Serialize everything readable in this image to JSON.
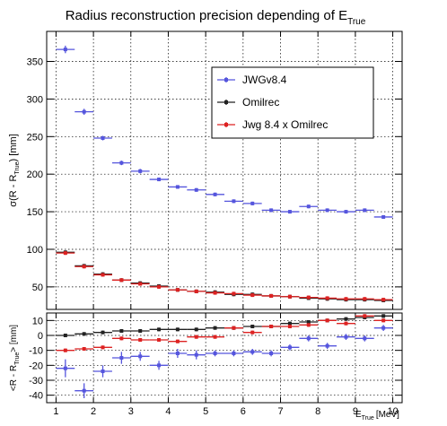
{
  "chart_data": {
    "type": "scatter",
    "title": "Radius reconstruction precision depending of E",
    "title_sub": "True",
    "xlabel_main": "E",
    "xlabel_sub": "True",
    "xlabel_unit": "[MeV]",
    "top": {
      "ylabel": "σ(R - R",
      "ylabel_sub": "True",
      "ylabel_end": ") [mm]",
      "xlim": [
        0.75,
        10.25
      ],
      "ylim": [
        20,
        390
      ],
      "yticks": [
        50,
        100,
        150,
        200,
        250,
        300,
        350
      ],
      "grid": true,
      "legend_position": "top-right",
      "series": [
        {
          "name": "JWGv8.4",
          "color": "#5555dd",
          "x": [
            1.25,
            1.75,
            2.25,
            2.75,
            3.25,
            3.75,
            4.25,
            4.75,
            5.25,
            5.75,
            6.25,
            6.75,
            7.25,
            7.75,
            8.25,
            8.75,
            9.25,
            9.75
          ],
          "y": [
            366,
            283,
            248,
            215,
            204,
            193,
            183,
            179,
            173,
            164,
            161,
            152,
            150,
            157,
            152,
            150,
            152,
            143
          ],
          "yerr": [
            5,
            4,
            3,
            3,
            3,
            2,
            2,
            2,
            2,
            2,
            2,
            2,
            2,
            2,
            2,
            2,
            2,
            2
          ]
        },
        {
          "name": "Omilrec",
          "color": "#222222",
          "x": [
            1.25,
            1.75,
            2.25,
            2.75,
            3.25,
            3.75,
            4.25,
            4.75,
            5.25,
            5.75,
            6.25,
            6.75,
            7.25,
            7.75,
            8.25,
            8.75,
            9.25,
            9.75
          ],
          "y": [
            96,
            78,
            67,
            59,
            55,
            51,
            46,
            44,
            43,
            40,
            40,
            38,
            37,
            35,
            34,
            33,
            33,
            32
          ],
          "yerr": [
            1.5,
            1,
            1,
            1,
            1,
            1,
            1,
            1,
            1,
            1,
            1,
            1,
            1,
            1,
            1,
            1,
            1,
            1
          ]
        },
        {
          "name": "Jwg 8.4 x Omilrec",
          "color": "#dd2222",
          "x": [
            1.25,
            1.75,
            2.25,
            2.75,
            3.25,
            3.75,
            4.25,
            4.75,
            5.25,
            5.75,
            6.25,
            6.75,
            7.25,
            7.75,
            8.25,
            8.75,
            9.25,
            9.75
          ],
          "y": [
            95,
            77,
            66,
            59,
            54,
            50,
            46,
            44,
            42,
            41,
            39,
            38,
            37,
            36,
            35,
            34,
            34,
            33
          ],
          "yerr": [
            1.5,
            1,
            1,
            1,
            1,
            1,
            1,
            1,
            1,
            1,
            1,
            1,
            1,
            1,
            1,
            1,
            1,
            1
          ]
        }
      ]
    },
    "bottom": {
      "ylabel": "<R - R",
      "ylabel_sub": "True",
      "ylabel_end": "> [mm]",
      "xlim": [
        0.75,
        10.25
      ],
      "ylim": [
        -45,
        15
      ],
      "yticks": [
        -40,
        -30,
        -20,
        -10,
        0,
        10
      ],
      "xticks": [
        1,
        2,
        3,
        4,
        5,
        6,
        7,
        8,
        9,
        10
      ],
      "grid": true,
      "series": [
        {
          "name": "JWGv8.4",
          "color": "#5555dd",
          "x": [
            1.25,
            1.75,
            2.25,
            2.75,
            3.25,
            3.75,
            4.25,
            4.75,
            5.25,
            5.75,
            6.25,
            6.75,
            7.25,
            7.75,
            8.25,
            8.75,
            9.25,
            9.75
          ],
          "y": [
            -22,
            -37,
            -24,
            -15,
            -14,
            -20,
            -12,
            -13,
            -12,
            -12,
            -11,
            -12,
            -8,
            -2,
            -7,
            -1,
            -2,
            5
          ],
          "yerr": [
            6,
            5,
            4,
            4,
            3,
            3,
            3,
            3,
            2,
            2,
            2,
            2,
            2,
            2,
            2,
            2,
            2,
            2
          ]
        },
        {
          "name": "Omilrec",
          "color": "#222222",
          "x": [
            1.25,
            1.75,
            2.25,
            2.75,
            3.25,
            3.75,
            4.25,
            4.75,
            5.25,
            5.75,
            6.25,
            6.75,
            7.25,
            7.75,
            8.25,
            8.75,
            9.25,
            9.75
          ],
          "y": [
            0,
            1,
            2,
            3,
            3,
            4,
            4,
            4,
            5,
            5,
            6,
            6,
            8,
            9,
            10,
            11,
            12,
            13
          ],
          "yerr": [
            0.8,
            0.8,
            0.8,
            0.8,
            0.8,
            0.8,
            0.8,
            0.8,
            0.8,
            0.8,
            0.8,
            0.8,
            0.8,
            0.8,
            0.8,
            0.8,
            0.8,
            0.8
          ]
        },
        {
          "name": "Jwg 8.4 x Omilrec",
          "color": "#dd2222",
          "x": [
            1.25,
            1.75,
            2.25,
            2.75,
            3.25,
            3.75,
            4.25,
            4.75,
            5.25,
            5.75,
            6.25,
            6.75,
            7.25,
            7.75,
            8.25,
            8.75,
            9.25,
            9.75
          ],
          "y": [
            -10,
            -9,
            -8,
            -2,
            -3,
            -3,
            -4,
            -1,
            -1,
            5,
            2,
            6,
            6,
            7,
            10,
            8,
            13,
            10
          ],
          "yerr": [
            1.2,
            1.2,
            1.2,
            1,
            1,
            1,
            1,
            1,
            1,
            1,
            1,
            1,
            1,
            1,
            1,
            1,
            1,
            1
          ]
        }
      ]
    }
  }
}
